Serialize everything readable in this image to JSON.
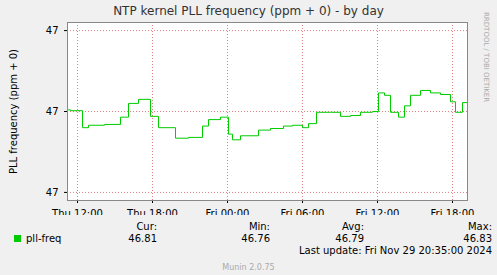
{
  "chart_data": {
    "type": "line",
    "title": "NTP kernel PLL frequency (ppm + 0) - by day",
    "y_label": "PLL frequency (ppm + 0)",
    "x": [
      11.2,
      11.44,
      12.4,
      12.88,
      14.16,
      15.44,
      16.08,
      16.88,
      17.84,
      18.48,
      19.84,
      20.88,
      22.0,
      22.48,
      23.44,
      24.08,
      24.4,
      25.04,
      26.48,
      27.44,
      28.48,
      29.2,
      30.0,
      30.48,
      31.12,
      32.24,
      33.04,
      33.84,
      34.64,
      35.6,
      36.08,
      36.56,
      37.04,
      37.68,
      38.16,
      38.64,
      39.44,
      40.24,
      41.04,
      41.84,
      42.24,
      42.8,
      43.2
    ],
    "series": [
      {
        "name": "pll-freq",
        "color": "#00cc00",
        "line_style": "step",
        "values": [
          46.802,
          46.801,
          46.78,
          46.783,
          46.784,
          46.793,
          46.81,
          46.815,
          46.794,
          46.78,
          46.767,
          46.768,
          46.782,
          46.79,
          46.793,
          46.772,
          46.765,
          46.77,
          46.777,
          46.779,
          46.782,
          46.783,
          46.78,
          46.785,
          46.799,
          46.799,
          46.794,
          46.795,
          46.799,
          46.8,
          46.823,
          46.82,
          46.799,
          46.793,
          46.807,
          46.82,
          46.826,
          46.823,
          46.821,
          46.812,
          46.799,
          46.811,
          46.811
        ]
      }
    ],
    "xlim": [
      11.2,
      43.2
    ],
    "xticks": [
      {
        "value": 12,
        "label": "Thu 12:00"
      },
      {
        "value": 18,
        "label": "Thu 18:00"
      },
      {
        "value": 24,
        "label": "Fri 00:00"
      },
      {
        "value": 30,
        "label": "Fri 06:00"
      },
      {
        "value": 36,
        "label": "Fri 12:00"
      },
      {
        "value": 42,
        "label": "Fri 18:00"
      }
    ],
    "ylim": [
      46.69,
      46.91
    ],
    "yticks": [
      {
        "value": 46.7,
        "label": "47"
      },
      {
        "value": 46.8,
        "label": "47"
      },
      {
        "value": 46.9,
        "label": "47"
      }
    ],
    "grid": true,
    "legend": "bottom-left",
    "stats": {
      "headers": [
        "Cur:",
        "Min:",
        "Avg:",
        "Max:"
      ],
      "pll-freq": [
        46.81,
        46.76,
        46.79,
        46.83
      ]
    },
    "footer": "Last update: Fri Nov 29 20:35:00 2024",
    "credit": "Munin 2.0.75",
    "watermark": "RRDTOOL / TOBI OETIKER"
  }
}
